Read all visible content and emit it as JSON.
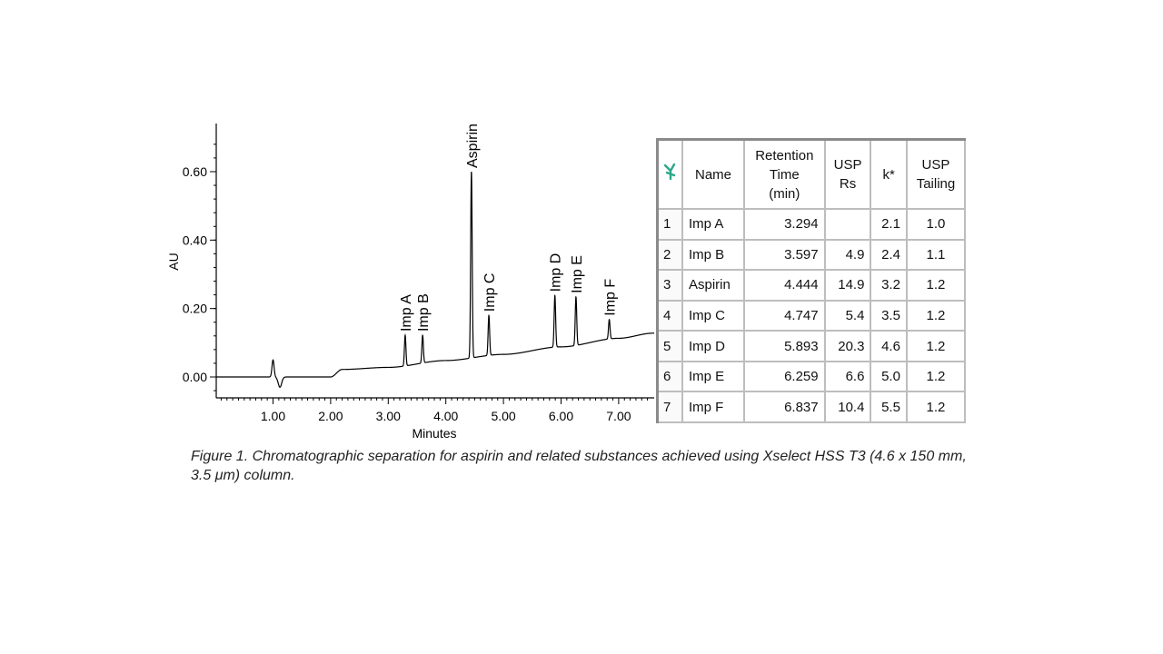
{
  "chart_data": {
    "type": "line",
    "title": "",
    "xlabel": "Minutes",
    "ylabel": "AU",
    "xlim": [
      0.0,
      7.6
    ],
    "ylim": [
      -0.06,
      0.74
    ],
    "x_ticks": [
      1.0,
      2.0,
      3.0,
      4.0,
      5.0,
      6.0,
      7.0
    ],
    "x_tick_labels": [
      "1.00",
      "2.00",
      "3.00",
      "4.00",
      "5.00",
      "6.00",
      "7.00"
    ],
    "y_ticks": [
      0.0,
      0.2,
      0.4,
      0.6
    ],
    "y_tick_labels": [
      "0.00",
      "0.20",
      "0.40",
      "0.60"
    ],
    "grid": false,
    "baseline": [
      {
        "x": 0.0,
        "y": 0.0
      },
      {
        "x": 2.0,
        "y": 0.0
      },
      {
        "x": 2.2,
        "y": 0.022
      },
      {
        "x": 3.0,
        "y": 0.028
      },
      {
        "x": 4.0,
        "y": 0.048
      },
      {
        "x": 5.0,
        "y": 0.066
      },
      {
        "x": 6.0,
        "y": 0.088
      },
      {
        "x": 7.0,
        "y": 0.113
      },
      {
        "x": 7.6,
        "y": 0.128
      }
    ],
    "system_peak": {
      "x": 1.0,
      "height": 0.05,
      "dip": -0.03
    },
    "peaks": [
      {
        "name": "Imp A",
        "x": 3.294,
        "apex": 0.122
      },
      {
        "name": "Imp B",
        "x": 3.597,
        "apex": 0.122
      },
      {
        "name": "Aspirin",
        "x": 4.444,
        "apex": 0.6
      },
      {
        "name": "Imp C",
        "x": 4.747,
        "apex": 0.18
      },
      {
        "name": "Imp D",
        "x": 5.893,
        "apex": 0.238
      },
      {
        "name": "Imp E",
        "x": 6.259,
        "apex": 0.234
      },
      {
        "name": "Imp F",
        "x": 6.837,
        "apex": 0.168
      }
    ]
  },
  "table": {
    "headers": {
      "index_icon": "peak-table-icon",
      "name": "Name",
      "rt": [
        "Retention",
        "Time",
        "(min)"
      ],
      "rs": [
        "USP",
        "Rs"
      ],
      "k": "k*",
      "tailing": [
        "USP",
        "Tailing"
      ]
    },
    "rows": [
      {
        "idx": "1",
        "name": "Imp A",
        "rt": "3.294",
        "rs": "",
        "k": "2.1",
        "tailing": "1.0"
      },
      {
        "idx": "2",
        "name": "Imp B",
        "rt": "3.597",
        "rs": "4.9",
        "k": "2.4",
        "tailing": "1.1"
      },
      {
        "idx": "3",
        "name": "Aspirin",
        "rt": "4.444",
        "rs": "14.9",
        "k": "3.2",
        "tailing": "1.2"
      },
      {
        "idx": "4",
        "name": "Imp C",
        "rt": "4.747",
        "rs": "5.4",
        "k": "3.5",
        "tailing": "1.2"
      },
      {
        "idx": "5",
        "name": "Imp D",
        "rt": "5.893",
        "rs": "20.3",
        "k": "4.6",
        "tailing": "1.2"
      },
      {
        "idx": "6",
        "name": "Imp E",
        "rt": "6.259",
        "rs": "6.6",
        "k": "5.0",
        "tailing": "1.2"
      },
      {
        "idx": "7",
        "name": "Imp F",
        "rt": "6.837",
        "rs": "10.4",
        "k": "5.5",
        "tailing": "1.2"
      }
    ],
    "icon_color": "#2aa889"
  },
  "caption": {
    "text": "Figure 1. Chromatographic separation for aspirin and related substances achieved using Xselect HSS T3 (4.6 x 150 mm, 3.5 μm) column."
  }
}
